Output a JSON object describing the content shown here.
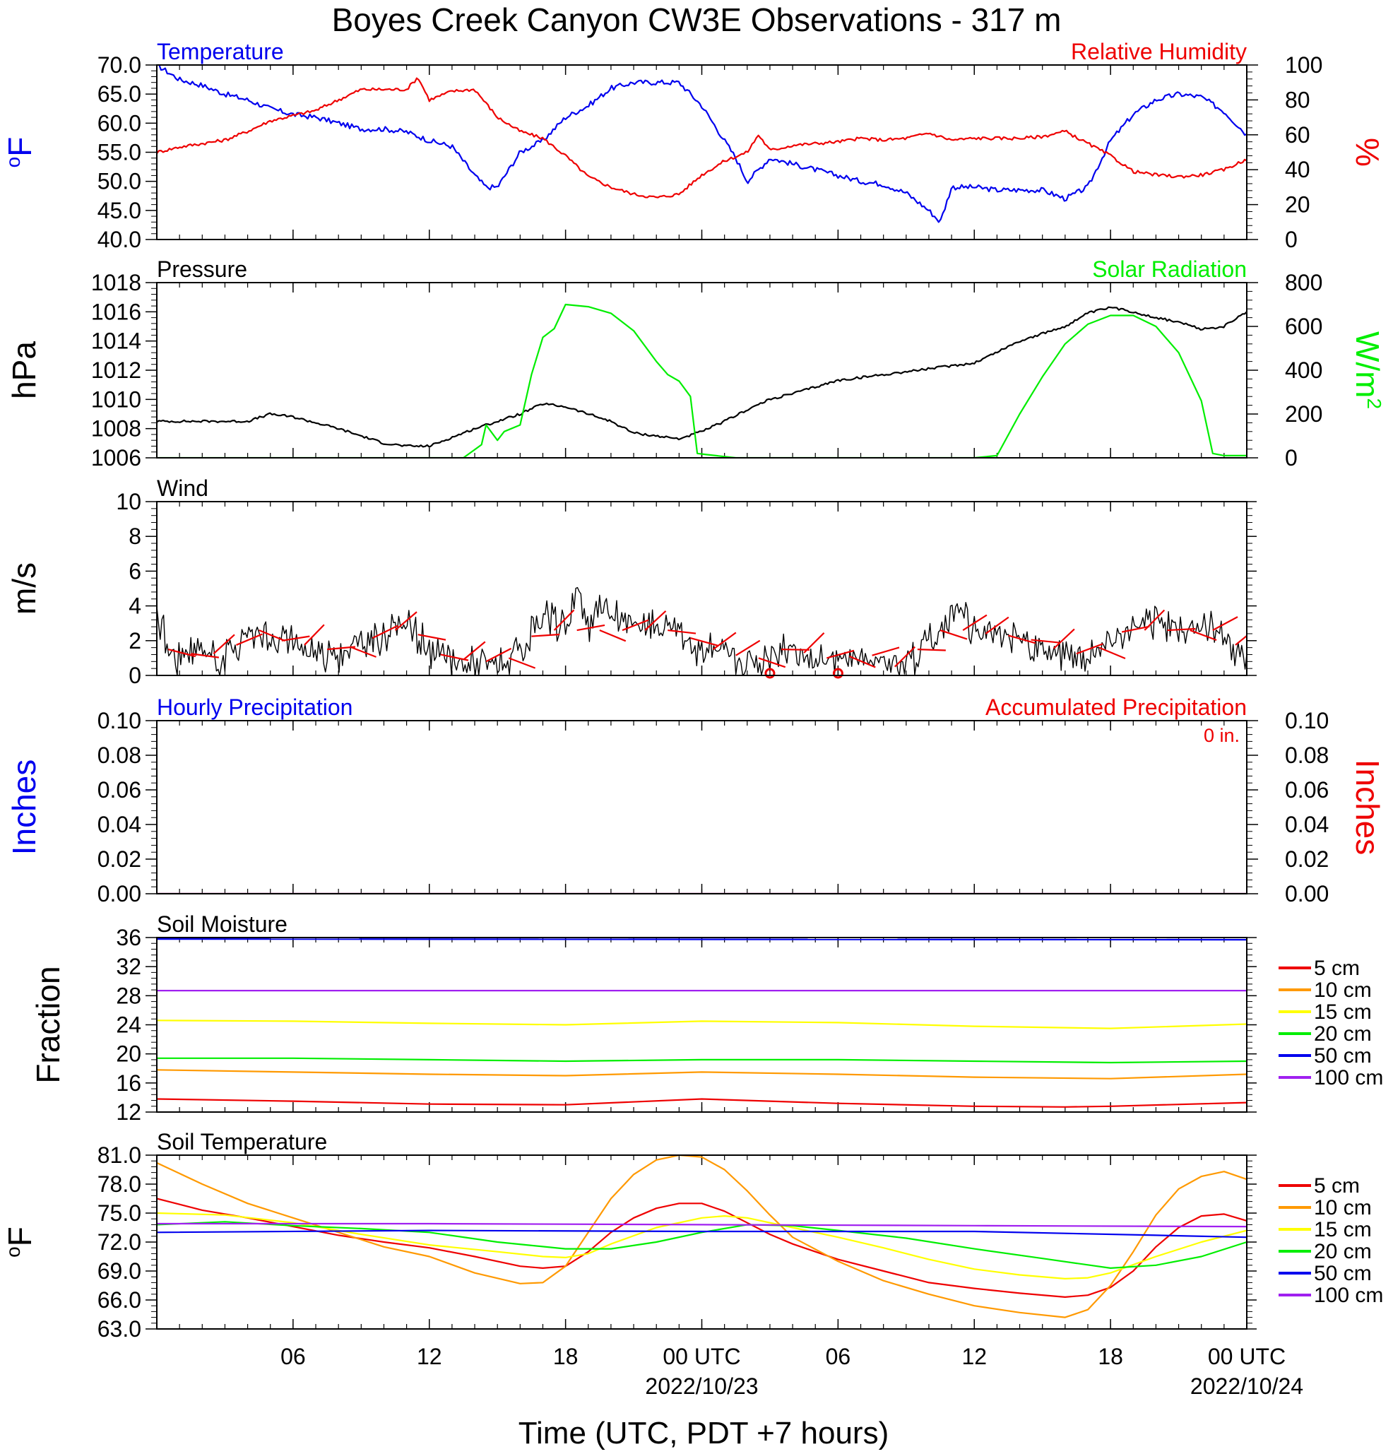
{
  "title": "Boyes Creek Canyon CW3E Observations - 317 m",
  "time_axis": {
    "label": "Time (UTC, PDT +7 hours)",
    "hours_total": 48,
    "ticks": [
      {
        "hour": 6,
        "label": "06",
        "date": ""
      },
      {
        "hour": 12,
        "label": "12",
        "date": ""
      },
      {
        "hour": 18,
        "label": "18",
        "date": ""
      },
      {
        "hour": 24,
        "label": "00 UTC",
        "date": "2022/10/23"
      },
      {
        "hour": 30,
        "label": "06",
        "date": ""
      },
      {
        "hour": 36,
        "label": "12",
        "date": ""
      },
      {
        "hour": 42,
        "label": "18",
        "date": ""
      },
      {
        "hour": 48,
        "label": "00 UTC",
        "date": "2022/10/24"
      }
    ]
  },
  "colors": {
    "blue": "#0000ee",
    "red": "#ee0000",
    "green": "#00ee00",
    "black": "#000000",
    "orange": "#ff9900",
    "yellow": "#ffff00",
    "purple": "#a020f0"
  },
  "chart_data": [
    {
      "id": "temperature-rh",
      "type": "line",
      "title_left": "Temperature",
      "title_right": "Relative Humidity",
      "ylabel_left": "oF",
      "ylabel_right": "%",
      "ylim_left": [
        40,
        70
      ],
      "ylim_right": [
        0,
        100
      ],
      "yticks_left": [
        "40.0",
        "45.0",
        "50.0",
        "55.0",
        "60.0",
        "65.0",
        "70.0"
      ],
      "yticks_right": [
        "0",
        "20",
        "40",
        "60",
        "80",
        "100"
      ],
      "series": [
        {
          "name": "Temperature",
          "axis": "left",
          "color": "blue",
          "x": [
            0,
            1,
            2,
            3,
            4,
            5,
            6,
            7,
            8,
            9,
            10,
            11,
            12,
            13,
            14,
            14.5,
            15,
            16,
            17,
            18,
            19,
            20,
            21,
            22,
            23,
            24,
            25,
            25.5,
            26,
            27,
            28,
            29,
            30,
            31,
            32,
            33,
            34,
            34.5,
            35,
            36,
            37,
            38,
            39,
            40,
            41,
            42,
            43,
            44,
            45,
            46,
            47,
            48
          ],
          "y": [
            70,
            67.5,
            66.5,
            65,
            64,
            62.5,
            61.5,
            61,
            60,
            59,
            59,
            58.5,
            57,
            56,
            51,
            49,
            49,
            55,
            57,
            61,
            63,
            66,
            67,
            67,
            67,
            63,
            57,
            54,
            50,
            54,
            53,
            52,
            51,
            50,
            49.5,
            48,
            45,
            43,
            49,
            49,
            48.5,
            48.5,
            48.5,
            47,
            49,
            57,
            61.5,
            64,
            65,
            64.5,
            62,
            58
          ]
        },
        {
          "name": "Relative Humidity",
          "axis": "right",
          "color": "red",
          "x": [
            0,
            1,
            2,
            3,
            4,
            5,
            6,
            7,
            8,
            9,
            10,
            11,
            11.5,
            12,
            13,
            14,
            15,
            16,
            17,
            18,
            19,
            20,
            21,
            22,
            23,
            24,
            25,
            26,
            26.5,
            27,
            28,
            29,
            30,
            31,
            32,
            33,
            34,
            35,
            36,
            37,
            38,
            39,
            40,
            41,
            42,
            43,
            44,
            45,
            46,
            47,
            48
          ],
          "y": [
            50,
            53,
            55,
            57,
            62,
            68,
            71,
            74,
            80,
            86,
            86,
            86,
            93,
            80,
            85,
            86,
            70,
            62,
            58,
            48,
            36,
            30,
            26,
            24,
            26,
            37,
            45,
            50,
            60,
            51,
            54,
            55,
            56,
            58,
            57,
            58,
            61,
            57,
            58,
            58,
            58,
            59,
            62,
            55,
            48,
            39,
            37,
            36,
            37,
            40,
            46
          ]
        }
      ]
    },
    {
      "id": "pressure-solar",
      "type": "line",
      "title_left": "Pressure",
      "title_right": "Solar Radiation",
      "ylabel_left": "hPa",
      "ylabel_right": "W/m2",
      "ylim_left": [
        1006,
        1018
      ],
      "ylim_right": [
        0,
        800
      ],
      "yticks_left": [
        "1006",
        "1008",
        "1010",
        "1012",
        "1014",
        "1016",
        "1018"
      ],
      "yticks_right": [
        "0",
        "200",
        "400",
        "600",
        "800"
      ],
      "series": [
        {
          "name": "Pressure",
          "axis": "left",
          "color": "black",
          "x": [
            0,
            2,
            4,
            5,
            6,
            8,
            10,
            11,
            12,
            14,
            16,
            17,
            18,
            19,
            20,
            21,
            22,
            23,
            24,
            25,
            26,
            27,
            28,
            30,
            32,
            34,
            36,
            38,
            40,
            41,
            42,
            43,
            44,
            45,
            46,
            47,
            48
          ],
          "y": [
            1008.5,
            1008.5,
            1008.5,
            1009,
            1008.8,
            1008,
            1007,
            1006.8,
            1006.8,
            1008,
            1009,
            1009.7,
            1009.5,
            1009,
            1008.5,
            1007.7,
            1007.5,
            1007.3,
            1007.8,
            1008.5,
            1009.3,
            1010,
            1010.4,
            1011.3,
            1011.7,
            1012.1,
            1012.5,
            1014,
            1015,
            1015.9,
            1016.3,
            1016,
            1015.6,
            1015.3,
            1014.8,
            1015,
            1016
          ]
        },
        {
          "name": "Solar Radiation",
          "axis": "right",
          "color": "green",
          "x": [
            0,
            13.5,
            14.3,
            14.5,
            15,
            15.3,
            16,
            16.5,
            17,
            17.5,
            18,
            19,
            20,
            21,
            22,
            22.5,
            23,
            23.5,
            23.8,
            24.2,
            25.5,
            36,
            37,
            38,
            39,
            40,
            41,
            42,
            43,
            44,
            45,
            46,
            46.5,
            47,
            48
          ],
          "y": [
            0,
            0,
            60,
            150,
            80,
            120,
            150,
            380,
            550,
            590,
            700,
            690,
            660,
            580,
            440,
            380,
            350,
            280,
            20,
            15,
            0,
            0,
            10,
            200,
            370,
            520,
            610,
            650,
            650,
            600,
            480,
            260,
            20,
            10,
            10
          ]
        }
      ]
    },
    {
      "id": "wind",
      "type": "line",
      "title_left": "Wind",
      "ylabel_left": "m/s",
      "ylim_left": [
        0,
        10
      ],
      "yticks_left": [
        "0",
        "2",
        "4",
        "6",
        "8",
        "10"
      ],
      "series": [
        {
          "name": "Wind",
          "axis": "left",
          "color": "black",
          "x": [
            0,
            0.5,
            1,
            2,
            3,
            4,
            4.5,
            5,
            6,
            7,
            8,
            9,
            10,
            11,
            12,
            13,
            14,
            15,
            16,
            17,
            18,
            18.5,
            19,
            19.5,
            20,
            21,
            22,
            23,
            24,
            25,
            26,
            27,
            28,
            29,
            30,
            31,
            32,
            32.5,
            33,
            34,
            35,
            35.5,
            36,
            37,
            38,
            39,
            40,
            41,
            42,
            43,
            44,
            45,
            46,
            47,
            48
          ],
          "y": [
            4,
            1.5,
            1,
            1.5,
            1,
            2.5,
            3,
            2,
            2,
            1.5,
            1.5,
            1.8,
            2.5,
            3.3,
            1.4,
            1,
            0.8,
            0.8,
            1.2,
            3.3,
            3,
            5,
            2.5,
            4.5,
            3.5,
            3,
            3,
            2.8,
            1.5,
            1.5,
            0.8,
            1.2,
            1.8,
            0.8,
            1.2,
            1,
            1.3,
            0.5,
            1,
            2,
            3.5,
            4.5,
            2.5,
            2.3,
            2.3,
            1.8,
            1.3,
            1.2,
            2,
            3,
            3,
            2.8,
            3,
            2.5,
            1
          ]
        }
      ],
      "calm_markers": [
        27,
        30
      ]
    },
    {
      "id": "precipitation",
      "type": "line",
      "title_left": "Hourly Precipitation",
      "title_right": "Accumulated Precipitation",
      "annotation": "0 in.",
      "ylabel_left": "Inches",
      "ylabel_right": "Inches",
      "ylim_left": [
        0,
        0.1
      ],
      "ylim_right": [
        0,
        0.1
      ],
      "yticks_left": [
        "0.00",
        "0.02",
        "0.04",
        "0.06",
        "0.08",
        "0.10"
      ],
      "yticks_right": [
        "0.00",
        "0.02",
        "0.04",
        "0.06",
        "0.08",
        "0.10"
      ],
      "series": [
        {
          "name": "Hourly Precipitation",
          "axis": "left",
          "color": "blue",
          "x": [
            0,
            48
          ],
          "y": [
            0,
            0
          ]
        },
        {
          "name": "Accumulated Precipitation",
          "axis": "right",
          "color": "red",
          "x": [
            0,
            48
          ],
          "y": [
            0,
            0
          ]
        }
      ]
    },
    {
      "id": "soil-moisture",
      "type": "line",
      "title_left": "Soil Moisture",
      "ylabel_left": "Fraction",
      "ylim_left": [
        12,
        36
      ],
      "yticks_left": [
        "12",
        "16",
        "20",
        "24",
        "28",
        "32",
        "36"
      ],
      "series": [
        {
          "name": "5 cm",
          "color": "red",
          "x": [
            0,
            6,
            12,
            18,
            24,
            30,
            36,
            40,
            42,
            48
          ],
          "y": [
            13.8,
            13.5,
            13.1,
            13,
            13.8,
            13.2,
            12.8,
            12.7,
            12.8,
            13.3
          ]
        },
        {
          "name": "10 cm",
          "color": "orange",
          "x": [
            0,
            6,
            12,
            18,
            24,
            30,
            36,
            42,
            48
          ],
          "y": [
            17.8,
            17.5,
            17.2,
            17,
            17.5,
            17.2,
            16.8,
            16.6,
            17.2
          ]
        },
        {
          "name": "15 cm",
          "color": "yellow",
          "x": [
            0,
            6,
            12,
            18,
            24,
            30,
            36,
            42,
            48
          ],
          "y": [
            24.6,
            24.5,
            24.2,
            24,
            24.5,
            24.3,
            23.8,
            23.5,
            24.1
          ]
        },
        {
          "name": "20 cm",
          "color": "green",
          "x": [
            0,
            6,
            12,
            18,
            24,
            30,
            36,
            42,
            48
          ],
          "y": [
            19.4,
            19.4,
            19.2,
            19,
            19.2,
            19.2,
            19,
            18.8,
            19
          ]
        },
        {
          "name": "50 cm",
          "color": "blue",
          "x": [
            0,
            48
          ],
          "y": [
            35.8,
            35.7
          ]
        },
        {
          "name": "100 cm",
          "color": "purple",
          "x": [
            0,
            48
          ],
          "y": [
            28.7,
            28.7
          ]
        }
      ]
    },
    {
      "id": "soil-temperature",
      "type": "line",
      "title_left": "Soil Temperature",
      "ylabel_left": "oF",
      "ylim_left": [
        63,
        81
      ],
      "yticks_left": [
        "63.0",
        "66.0",
        "69.0",
        "72.0",
        "75.0",
        "78.0",
        "81.0"
      ],
      "series": [
        {
          "name": "5 cm",
          "color": "red",
          "x": [
            0,
            2,
            4,
            6,
            8,
            10,
            12,
            14,
            16,
            17,
            18,
            19,
            20,
            21,
            22,
            23,
            24,
            25,
            26,
            27,
            28,
            30,
            32,
            34,
            36,
            38,
            40,
            41,
            42,
            43,
            44,
            45,
            46,
            47,
            48
          ],
          "y": [
            76.5,
            75.3,
            74.5,
            73.6,
            72.7,
            72,
            71.4,
            70.5,
            69.5,
            69.3,
            69.5,
            71,
            73,
            74.5,
            75.5,
            76,
            76,
            75.2,
            74,
            72.8,
            71.8,
            70.2,
            69,
            67.8,
            67.2,
            66.7,
            66.3,
            66.5,
            67.3,
            69,
            71.5,
            73.5,
            74.7,
            74.9,
            74.2
          ]
        },
        {
          "name": "10 cm",
          "color": "orange",
          "x": [
            0,
            2,
            4,
            6,
            8,
            10,
            12,
            14,
            16,
            17,
            18,
            19,
            20,
            21,
            22,
            23,
            24,
            25,
            26,
            27,
            28,
            30,
            32,
            34,
            36,
            38,
            40,
            41,
            42,
            43,
            44,
            45,
            46,
            47,
            48
          ],
          "y": [
            80.2,
            78,
            76,
            74.5,
            73,
            71.5,
            70.5,
            68.8,
            67.7,
            67.8,
            69.5,
            73,
            76.5,
            79,
            80.5,
            81,
            80.8,
            79.5,
            77.3,
            74.8,
            72.5,
            70,
            68,
            66.6,
            65.4,
            64.7,
            64.2,
            65,
            67.5,
            71,
            74.8,
            77.5,
            78.8,
            79.3,
            78.5
          ]
        },
        {
          "name": "15 cm",
          "color": "yellow",
          "x": [
            0,
            3,
            6,
            9,
            12,
            15,
            17,
            18,
            19,
            20,
            22,
            24,
            25,
            26,
            28,
            30,
            32,
            34,
            36,
            38,
            40,
            41,
            42,
            44,
            46,
            48
          ],
          "y": [
            75,
            74.8,
            74,
            72.8,
            71.7,
            71,
            70.5,
            70.4,
            70.8,
            71.8,
            73.5,
            74.5,
            74.7,
            74.5,
            73.5,
            72.5,
            71.4,
            70.2,
            69.2,
            68.6,
            68.2,
            68.3,
            68.8,
            70.5,
            72,
            73.2
          ]
        },
        {
          "name": "20 cm",
          "color": "green",
          "x": [
            0,
            3,
            6,
            9,
            12,
            15,
            18,
            20,
            22,
            24,
            26,
            28,
            30,
            33,
            36,
            39,
            42,
            44,
            46,
            48
          ],
          "y": [
            73.8,
            74.1,
            73.7,
            73.4,
            73,
            72,
            71.3,
            71.3,
            72,
            73,
            73.8,
            73.7,
            73.2,
            72.4,
            71.3,
            70.3,
            69.3,
            69.6,
            70.5,
            72
          ]
        },
        {
          "name": "50 cm",
          "color": "blue",
          "x": [
            0,
            12,
            24,
            36,
            44,
            48
          ],
          "y": [
            73,
            73.2,
            73.1,
            73.1,
            72.7,
            72.5
          ]
        },
        {
          "name": "100 cm",
          "color": "purple",
          "x": [
            0,
            12,
            24,
            36,
            48
          ],
          "y": [
            73.9,
            73.9,
            73.8,
            73.7,
            73.6
          ]
        }
      ]
    }
  ]
}
